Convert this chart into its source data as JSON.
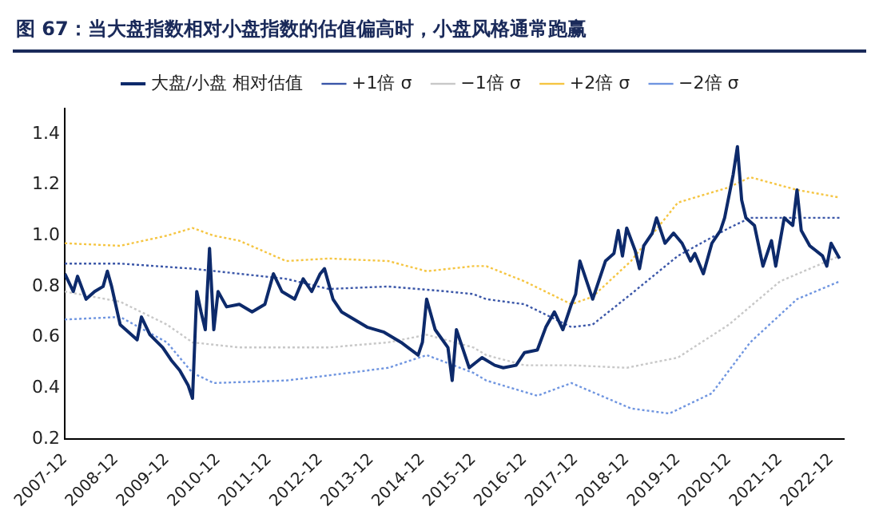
{
  "chart_data": {
    "type": "line",
    "title": "图 67：当大盘指数相对小盘指数的估值偏高时，小盘风格通常跑赢",
    "series": [
      {
        "name": "大盘/小盘 相对估值",
        "color": "#0d2a6b",
        "line_style": "solid",
        "x": [
          "2007-12",
          "2008-02",
          "2008-03",
          "2008-05",
          "2008-07",
          "2008-09",
          "2008-10",
          "2008-11",
          "2009-01",
          "2009-03",
          "2009-05",
          "2009-06",
          "2009-08",
          "2009-11",
          "2010-01",
          "2010-03",
          "2010-05",
          "2010-06",
          "2010-07",
          "2010-08",
          "2010-09",
          "2010-10",
          "2010-11",
          "2010-12",
          "2011-02",
          "2011-05",
          "2011-08",
          "2011-11",
          "2012-01",
          "2012-03",
          "2012-06",
          "2012-08",
          "2012-10",
          "2012-12",
          "2013-01",
          "2013-03",
          "2013-05",
          "2013-08",
          "2013-11",
          "2014-03",
          "2014-07",
          "2014-11",
          "2014-12",
          "2015-01",
          "2015-03",
          "2015-06",
          "2015-07",
          "2015-08",
          "2015-10",
          "2015-11",
          "2016-02",
          "2016-05",
          "2016-07",
          "2016-10",
          "2016-12",
          "2017-03",
          "2017-05",
          "2017-07",
          "2017-09",
          "2017-11",
          "2017-12",
          "2018-01",
          "2018-03",
          "2018-04",
          "2018-07",
          "2018-09",
          "2018-10",
          "2018-11",
          "2018-12",
          "2019-02",
          "2019-03",
          "2019-04",
          "2019-06",
          "2019-07",
          "2019-09",
          "2019-11",
          "2020-01",
          "2020-03",
          "2020-04",
          "2020-06",
          "2020-08",
          "2020-10",
          "2020-11",
          "2021-01",
          "2021-02",
          "2021-03",
          "2021-04",
          "2021-06",
          "2021-08",
          "2021-10",
          "2021-11",
          "2022-01",
          "2022-03",
          "2022-04",
          "2022-05",
          "2022-07",
          "2022-10",
          "2022-11",
          "2022-12",
          "2023-02"
        ],
        "values": [
          0.85,
          0.78,
          0.84,
          0.75,
          0.78,
          0.8,
          0.86,
          0.8,
          0.65,
          0.62,
          0.59,
          0.68,
          0.61,
          0.56,
          0.51,
          0.47,
          0.41,
          0.36,
          0.78,
          0.7,
          0.63,
          0.95,
          0.63,
          0.78,
          0.72,
          0.73,
          0.7,
          0.73,
          0.85,
          0.78,
          0.75,
          0.83,
          0.78,
          0.85,
          0.87,
          0.75,
          0.7,
          0.67,
          0.64,
          0.62,
          0.58,
          0.53,
          0.58,
          0.75,
          0.63,
          0.56,
          0.43,
          0.63,
          0.53,
          0.48,
          0.52,
          0.49,
          0.48,
          0.49,
          0.54,
          0.55,
          0.64,
          0.7,
          0.63,
          0.73,
          0.77,
          0.9,
          0.8,
          0.75,
          0.9,
          0.93,
          1.02,
          0.92,
          1.03,
          0.94,
          0.87,
          0.96,
          1.01,
          1.07,
          0.97,
          1.01,
          0.97,
          0.9,
          0.93,
          0.85,
          0.97,
          1.02,
          1.07,
          1.24,
          1.35,
          1.14,
          1.07,
          1.04,
          0.88,
          0.98,
          0.88,
          1.07,
          1.04,
          1.18,
          1.02,
          0.96,
          0.92,
          0.88,
          0.97,
          0.91
        ]
      },
      {
        "name": "+1倍 σ",
        "color": "#3a56a8",
        "line_style": "dotted",
        "x": [
          "2007-12",
          "2009-01",
          "2010-06",
          "2011-05",
          "2012-04",
          "2013-02",
          "2014-04",
          "2015-06",
          "2015-12",
          "2016-03",
          "2016-12",
          "2017-11",
          "2018-04",
          "2019-01",
          "2019-12",
          "2020-12",
          "2021-05",
          "2022-04",
          "2023-02"
        ],
        "values": [
          0.89,
          0.89,
          0.87,
          0.85,
          0.83,
          0.79,
          0.8,
          0.78,
          0.77,
          0.75,
          0.73,
          0.64,
          0.65,
          0.77,
          0.92,
          1.03,
          1.07,
          1.07,
          1.07
        ]
      },
      {
        "name": "−1倍 σ",
        "color": "#c8c8c8",
        "line_style": "dotted",
        "x": [
          "2007-12",
          "2009-01",
          "2009-12",
          "2010-06",
          "2011-05",
          "2012-04",
          "2013-02",
          "2014-04",
          "2015-01",
          "2015-12",
          "2016-03",
          "2016-12",
          "2017-11",
          "2018-12",
          "2019-12",
          "2020-12",
          "2021-12",
          "2023-02"
        ],
        "values": [
          0.78,
          0.74,
          0.65,
          0.58,
          0.56,
          0.56,
          0.56,
          0.58,
          0.61,
          0.56,
          0.53,
          0.49,
          0.49,
          0.48,
          0.52,
          0.65,
          0.82,
          0.92
        ]
      },
      {
        "name": "+2倍 σ",
        "color": "#f5c542",
        "line_style": "dotted",
        "x": [
          "2007-12",
          "2009-01",
          "2009-12",
          "2010-06",
          "2010-11",
          "2011-05",
          "2012-04",
          "2013-02",
          "2014-04",
          "2015-01",
          "2015-12",
          "2016-03",
          "2016-12",
          "2017-11",
          "2018-04",
          "2019-01",
          "2019-12",
          "2020-12",
          "2021-05",
          "2022-04",
          "2023-02"
        ],
        "values": [
          0.97,
          0.96,
          1.0,
          1.03,
          1.0,
          0.98,
          0.9,
          0.91,
          0.9,
          0.86,
          0.88,
          0.88,
          0.82,
          0.73,
          0.76,
          0.9,
          1.13,
          1.19,
          1.23,
          1.18,
          1.15
        ]
      },
      {
        "name": "−2倍 σ",
        "color": "#6f95e0",
        "line_style": "dotted",
        "x": [
          "2007-12",
          "2009-01",
          "2009-12",
          "2010-06",
          "2010-11",
          "2012-04",
          "2013-02",
          "2014-04",
          "2015-01",
          "2015-12",
          "2016-03",
          "2017-03",
          "2017-11",
          "2019-01",
          "2019-10",
          "2020-08",
          "2021-05",
          "2022-04",
          "2023-02"
        ],
        "values": [
          0.67,
          0.68,
          0.58,
          0.46,
          0.42,
          0.43,
          0.45,
          0.48,
          0.53,
          0.46,
          0.43,
          0.37,
          0.42,
          0.32,
          0.3,
          0.38,
          0.58,
          0.75,
          0.82
        ]
      }
    ],
    "xlim": [
      "2007-12",
      "2023-03"
    ],
    "xticks": [
      "2007-12",
      "2008-12",
      "2009-12",
      "2010-12",
      "2011-12",
      "2012-12",
      "2013-12",
      "2014-12",
      "2015-12",
      "2016-12",
      "2017-12",
      "2018-12",
      "2019-12",
      "2020-12",
      "2021-12",
      "2022-12"
    ],
    "ylim": [
      0.2,
      1.5
    ],
    "yticks": [
      0.2,
      0.4,
      0.6,
      0.8,
      {
        "value": 1,
        "label": "1.0"
      },
      1.2,
      1.4
    ],
    "grid": false,
    "legend": "top",
    "marker": "none"
  }
}
